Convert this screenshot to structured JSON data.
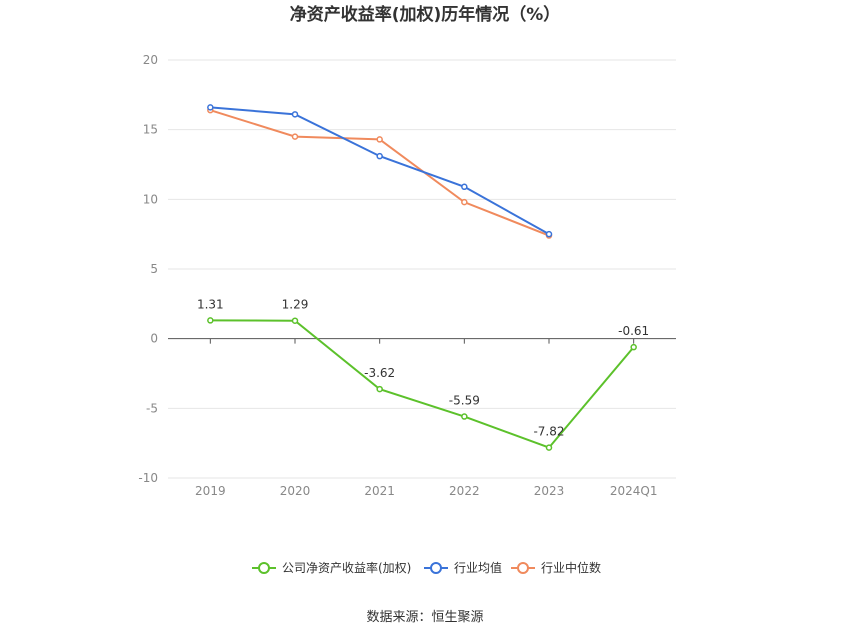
{
  "chart_data": {
    "type": "line",
    "title": "净资产收益率(加权)历年情况（%）",
    "categories": [
      "2019",
      "2020",
      "2021",
      "2022",
      "2023",
      "2024Q1"
    ],
    "ylim": [
      -10,
      20
    ],
    "yticks": [
      -10,
      -5,
      0,
      5,
      10,
      15,
      20
    ],
    "grid": true,
    "legend_position": "bottom",
    "series": [
      {
        "name": "公司净资产收益率(加权)",
        "color": "#5cc12b",
        "values": [
          1.31,
          1.29,
          -3.62,
          -5.59,
          -7.82,
          -0.61
        ],
        "labels": [
          "1.31",
          "1.29",
          "-3.62",
          "-5.59",
          "-7.82",
          "-0.61"
        ]
      },
      {
        "name": "行业均值",
        "color": "#3a73d9",
        "values": [
          16.6,
          16.1,
          13.1,
          10.9,
          7.5,
          null
        ]
      },
      {
        "name": "行业中位数",
        "color": "#f08a5d",
        "values": [
          16.4,
          14.5,
          14.3,
          9.8,
          7.4,
          null
        ]
      }
    ],
    "source": "数据来源：恒生聚源"
  }
}
